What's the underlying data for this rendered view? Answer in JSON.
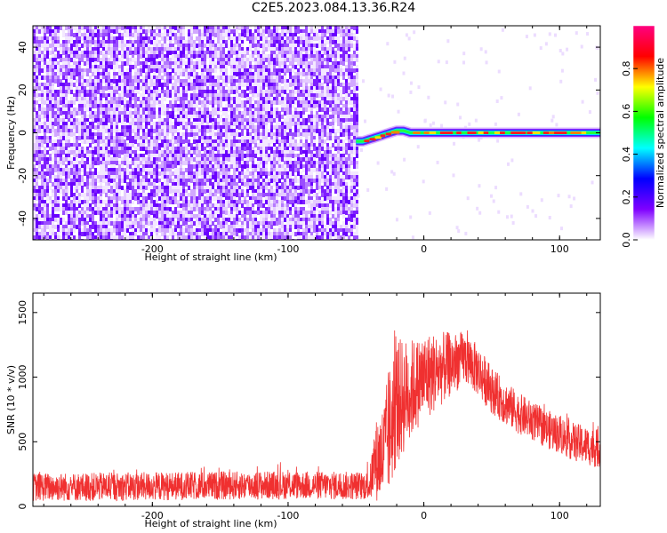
{
  "title": "C2E5.2023.084.13.36.R24",
  "chart_data": [
    {
      "type": "heatmap",
      "title": "",
      "xlabel": "Height of straight line (km)",
      "ylabel": "Frequency (Hz)",
      "xlim": [
        -288,
        130
      ],
      "ylim": [
        -50,
        50
      ],
      "xticks": [
        -200,
        -100,
        0,
        100
      ],
      "xtick_labels": [
        "-200",
        "-100",
        "0",
        "100"
      ],
      "yticks": [
        -40,
        -20,
        0,
        20,
        40
      ],
      "ytick_labels": [
        "-40",
        "-20",
        "0",
        "20",
        "40"
      ],
      "noise_region_x": [
        -288,
        -50
      ],
      "signal_track": {
        "x": [
          -50,
          -45,
          -40,
          -35,
          -30,
          -25,
          -20,
          -15,
          -10,
          -5,
          0,
          20,
          40,
          60,
          80,
          100,
          130
        ],
        "frequency": [
          -4,
          -4,
          -3,
          -2,
          -1,
          0,
          1,
          1,
          0,
          0,
          0,
          0,
          0,
          0,
          0,
          0,
          0
        ]
      },
      "colorbar": {
        "label": "Normalized spectral amplitude",
        "range": [
          0,
          1
        ],
        "ticks": [
          0.0,
          0.2,
          0.4,
          0.6,
          0.8
        ],
        "tick_labels": [
          "0.0",
          "0.2",
          "0.4",
          "0.6",
          "0.8"
        ],
        "colormap": [
          "#ffffff",
          "#7f00ff",
          "#0000ff",
          "#00ffff",
          "#00ff00",
          "#ffff00",
          "#ff0000",
          "#ff0080"
        ]
      },
      "grid": false
    },
    {
      "type": "line",
      "title": "",
      "xlabel": "Height of straight line (km)",
      "ylabel": "SNR (10 * v/v)",
      "xlim": [
        -288,
        130
      ],
      "ylim": [
        0,
        1650
      ],
      "xticks": [
        -200,
        -100,
        0,
        100
      ],
      "xtick_labels": [
        "-200",
        "-100",
        "0",
        "100"
      ],
      "yticks": [
        0,
        500,
        1000,
        1500
      ],
      "ytick_labels": [
        "0",
        "500",
        "1000",
        "1500"
      ],
      "series": [
        {
          "color": "#f03030",
          "x": [
            -288,
            -250,
            -200,
            -150,
            -100,
            -60,
            -40,
            -36,
            -30,
            -25,
            -20,
            -15,
            -10,
            -5,
            0,
            10,
            20,
            30,
            40,
            50,
            60,
            70,
            80,
            90,
            100,
            110,
            120,
            130
          ],
          "mean": [
            150,
            150,
            155,
            160,
            165,
            160,
            160,
            350,
            400,
            600,
            800,
            850,
            900,
            950,
            1000,
            1050,
            1100,
            1150,
            1050,
            900,
            800,
            720,
            660,
            600,
            560,
            500,
            470,
            440
          ],
          "spread": [
            110,
            110,
            110,
            110,
            110,
            110,
            110,
            300,
            400,
            500,
            500,
            450,
            400,
            350,
            350,
            300,
            250,
            200,
            200,
            180,
            170,
            160,
            150,
            150,
            150,
            150,
            150,
            150
          ]
        }
      ],
      "grid": false
    }
  ]
}
